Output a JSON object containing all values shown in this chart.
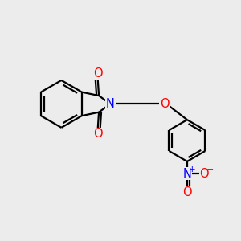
{
  "bg_color": "#ececec",
  "bond_color": "#000000",
  "o_color": "#ff0000",
  "n_color": "#0000ff",
  "line_width": 1.6,
  "font_size_atom": 10.5,
  "fig_size": [
    3.0,
    3.0
  ],
  "dpi": 100,
  "xlim": [
    0,
    10
  ],
  "ylim": [
    0,
    10
  ]
}
